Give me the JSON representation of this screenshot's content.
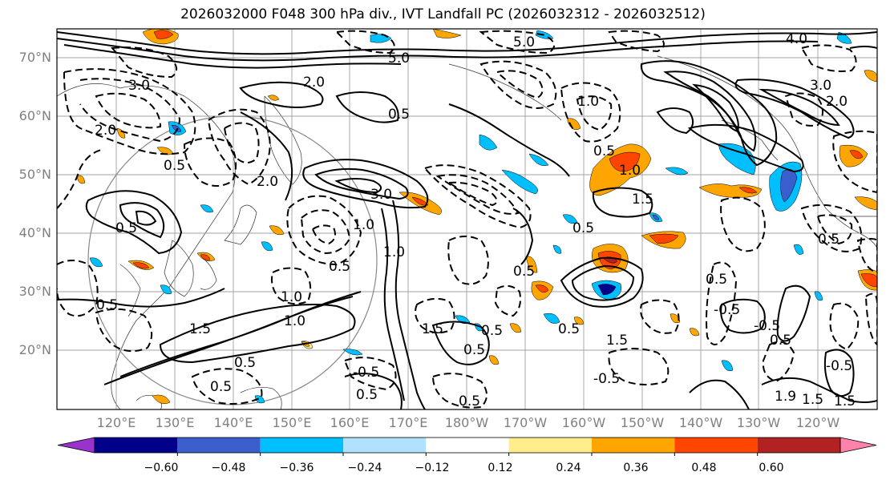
{
  "title": "2026032000 F048 300 hPa div., IVT Landfall PC (2026032312 - 2026032512)",
  "lat_labels": [
    "70°N",
    "60°N",
    "50°N",
    "40°N",
    "30°N",
    "20°N"
  ],
  "lon_labels": [
    "120°E",
    "130°E",
    "140°E",
    "150°E",
    "160°E",
    "170°E",
    "180°W",
    "170°W",
    "160°W",
    "150°W",
    "140°W",
    "130°W",
    "120°W"
  ],
  "colorbar": {
    "ticks": [
      "−0.60",
      "−0.48",
      "−0.36",
      "−0.24",
      "−0.12",
      "0.12",
      "0.24",
      "0.36",
      "0.48",
      "0.60"
    ],
    "colors": [
      "#9a32cd",
      "#00008b",
      "#3a5fcd",
      "#00bfff",
      "#b0e2ff",
      "#ffffff",
      "#ffec8b",
      "#ffa500",
      "#ff4500",
      "#b22222",
      "#ff82ab"
    ]
  },
  "contour_labels": [
    "2.0",
    "3.0",
    "3.0",
    "2.0",
    "0.5",
    "0.5",
    "5.0",
    "5.0",
    "4.0",
    "3.0",
    "2.0",
    "1.0",
    "1.0",
    "0.5",
    "1.5",
    "0.5",
    "0.5",
    "0.5",
    "1.0",
    "0.5",
    "0.5",
    "2.0",
    "1.0",
    "1.5",
    "0.5",
    "0.5",
    "0.5",
    "1.0",
    "1.5",
    "0.5",
    "-0.5",
    "-0.5",
    "0.5",
    "0.5",
    "1.5",
    "0.5",
    "-0.5",
    "-0.5",
    "0.5",
    "-0.5",
    "1.9",
    "1.5",
    "1.5",
    "0.5",
    "0.5",
    "1.0"
  ]
}
